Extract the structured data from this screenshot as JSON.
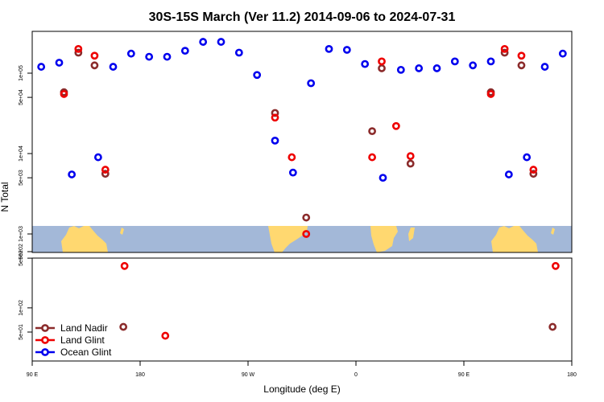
{
  "chart_data": {
    "type": "scatter",
    "title": "30S-15S March (Ver 11.2)   2014-09-06 to 2024-07-31",
    "xlabel": "Longitude (deg E)",
    "ylabel": "N Total",
    "x_ticks": [
      {
        "lon": 90,
        "label": "90 E"
      },
      {
        "lon": 180,
        "label": "180"
      },
      {
        "lon": 270,
        "label": "90 W"
      },
      {
        "lon": 360,
        "label": "0"
      },
      {
        "lon": 450,
        "label": "90 E"
      },
      {
        "lon": 540,
        "label": "180"
      }
    ],
    "xlim": [
      90,
      540
    ],
    "scale": "log",
    "upper_panel": {
      "y_ticks": [
        {
          "value": 500,
          "label": "5e+02"
        },
        {
          "value": 1000,
          "label": "1e+03"
        },
        {
          "value": 5000,
          "label": "5e+03"
        },
        {
          "value": 10000,
          "label": "1e+04"
        },
        {
          "value": 50000,
          "label": "5e+04"
        },
        {
          "value": 100000,
          "label": "1e+05"
        }
      ]
    },
    "lower_panel": {
      "y_ticks": [
        {
          "value": 50,
          "label": "5e+01"
        },
        {
          "value": 100,
          "label": "1e+02"
        },
        {
          "value": 500,
          "label": "5e+02"
        }
      ]
    },
    "legend": {
      "placement": "bottom-left",
      "entries": [
        {
          "name": "Land Nadir",
          "color": "#8b2b2b"
        },
        {
          "name": "Land Glint",
          "color": "#ee0000"
        },
        {
          "name": "Ocean Glint",
          "color": "#0000ee"
        }
      ]
    },
    "colors": {
      "map_ocean": "#a3b8d8",
      "map_land": "#ffd870"
    },
    "series": [
      {
        "name": "Ocean Glint",
        "points": [
          [
            97.5,
            120000
          ],
          [
            112.5,
            135000
          ],
          [
            123,
            5500
          ],
          [
            145,
            9000
          ],
          [
            157.5,
            120000
          ],
          [
            172.5,
            175000
          ],
          [
            187.5,
            160000
          ],
          [
            202.5,
            160000
          ],
          [
            217.5,
            190000
          ],
          [
            232.5,
            245000
          ],
          [
            247.5,
            245000
          ],
          [
            262.5,
            180000
          ],
          [
            277.5,
            95000
          ],
          [
            292.5,
            14500
          ],
          [
            307.5,
            5800
          ],
          [
            322.5,
            75000
          ],
          [
            337.5,
            200000
          ],
          [
            352.5,
            195000
          ],
          [
            367.5,
            130000
          ],
          [
            382.5,
            5000
          ],
          [
            397.5,
            110000
          ],
          [
            412.5,
            115000
          ],
          [
            427.5,
            115000
          ],
          [
            442.5,
            140000
          ],
          [
            457.5,
            125000
          ],
          [
            472.5,
            140000
          ],
          [
            487.5,
            5500
          ],
          [
            502.5,
            9000
          ],
          [
            517.5,
            120000
          ],
          [
            532.5,
            175000
          ]
        ]
      },
      {
        "name": "Land Glint",
        "points": [
          [
            116.5,
            55000
          ],
          [
            128.5,
            200000
          ],
          [
            142,
            165000
          ],
          [
            151,
            6300
          ],
          [
            167,
            400
          ],
          [
            292.5,
            28000
          ],
          [
            306.5,
            9000
          ],
          [
            318.5,
            1000
          ],
          [
            201,
            45
          ],
          [
            373.5,
            9000
          ],
          [
            381.5,
            140000
          ],
          [
            393.5,
            22000
          ],
          [
            405.5,
            9300
          ],
          [
            472.5,
            55000
          ],
          [
            484,
            200000
          ],
          [
            498,
            165000
          ],
          [
            508,
            6300
          ],
          [
            526.5,
            400
          ]
        ]
      },
      {
        "name": "Land Nadir",
        "points": [
          [
            116.5,
            58000
          ],
          [
            128.5,
            180000
          ],
          [
            142,
            125000
          ],
          [
            151,
            5600
          ],
          [
            166,
            58
          ],
          [
            292.5,
            32000
          ],
          [
            318.5,
            1600
          ],
          [
            373.5,
            19000
          ],
          [
            381.5,
            115000
          ],
          [
            405.5,
            7500
          ],
          [
            472.5,
            58000
          ],
          [
            484,
            180000
          ],
          [
            498,
            125000
          ],
          [
            508,
            5600
          ],
          [
            524,
            58
          ]
        ]
      }
    ]
  }
}
